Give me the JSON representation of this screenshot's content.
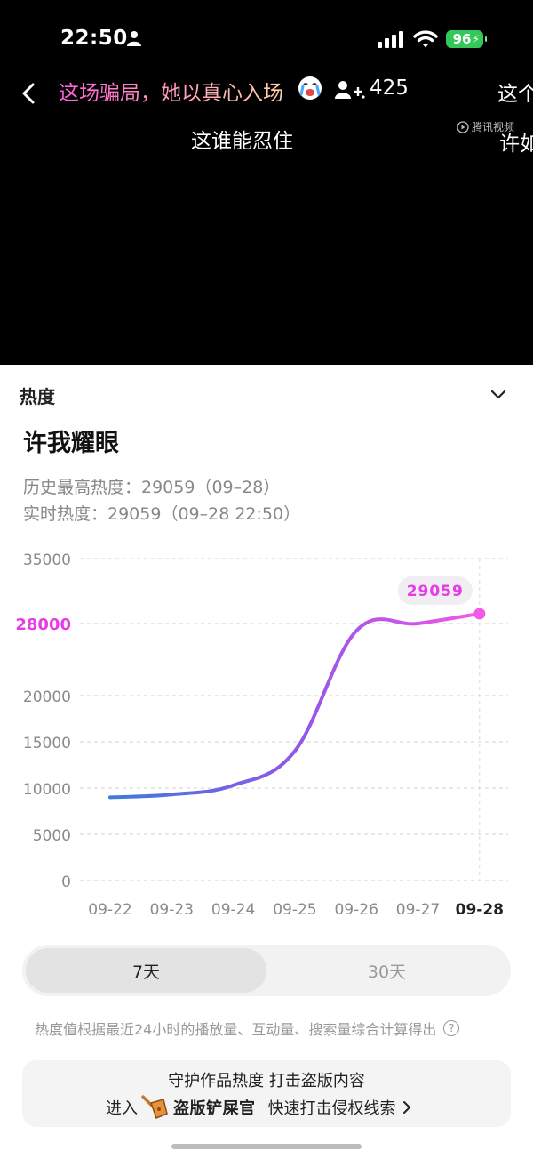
{
  "status": {
    "time": "22:50",
    "battery": "96"
  },
  "video": {
    "title": "这场骗局，她以真心入场",
    "viewers": "425",
    "subtitle_main": "这谁能忍住",
    "subtitle_right_top": "这个",
    "subtitle_right_mid": "许如",
    "watermark": "腾讯视频"
  },
  "panel": {
    "header": "热度",
    "show_title": "许我耀眼",
    "history_high": "历史最高热度：29059（09–28）",
    "realtime": "实时热度：29059（09–28 22:50）"
  },
  "chart_data": {
    "type": "line",
    "x": [
      "09-22",
      "09-23",
      "09-24",
      "09-25",
      "09-26",
      "09-27",
      "09-28"
    ],
    "y_ticks": [
      "35000",
      "28000",
      "20000",
      "15000",
      "10000",
      "5000",
      "0"
    ],
    "highlight_tick": "28000",
    "series": [
      {
        "values": [
          9000,
          9300,
          10300,
          14000,
          27200,
          28000,
          29059
        ]
      }
    ],
    "peak_label": "29059",
    "ylim": [
      0,
      35000
    ],
    "grid": true,
    "colors": {
      "start": "#3c7bdc",
      "end": "#f05ae6",
      "highlight": "#e63ce6"
    }
  },
  "tabs": {
    "seven_days": "7天",
    "thirty_days": "30天"
  },
  "footnote": "热度值根据最近24小时的播放量、互动量、搜索量综合计算得出",
  "promo": {
    "line1": "守护作品热度 打击盗版内容",
    "enter": "进入",
    "brand": "盗版铲屎官",
    "action": "快速打击侵权线索"
  }
}
